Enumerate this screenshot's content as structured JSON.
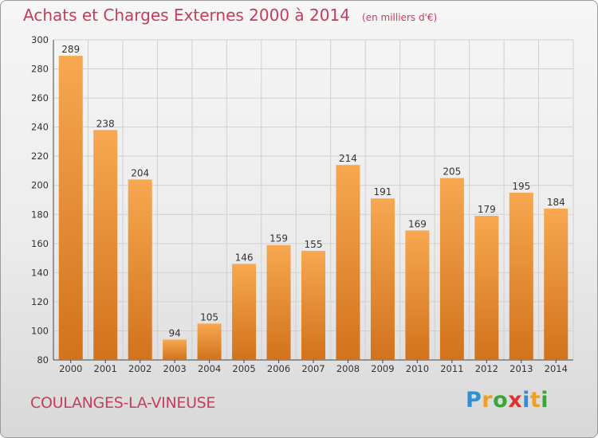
{
  "chart_data": {
    "type": "bar",
    "title": "Achats et Charges Externes 2000 à 2014",
    "unit": "(en milliers d'€)",
    "categories": [
      "2000",
      "2001",
      "2002",
      "2003",
      "2004",
      "2005",
      "2006",
      "2007",
      "2008",
      "2009",
      "2010",
      "2011",
      "2012",
      "2013",
      "2014"
    ],
    "values": [
      289,
      238,
      204,
      94,
      105,
      146,
      159,
      155,
      214,
      191,
      169,
      205,
      179,
      195,
      184
    ],
    "ylim": [
      80,
      300
    ],
    "yticks": [
      80,
      100,
      120,
      140,
      160,
      180,
      200,
      220,
      240,
      260,
      280,
      300
    ],
    "grid": true,
    "bar_color_top": "#f7a850",
    "bar_color_bottom": "#d2721c"
  },
  "footer": {
    "town": "COULANGES-LA-VINEUSE",
    "logo_letters": [
      "P",
      "r",
      "o",
      "x",
      "i",
      "t",
      "i"
    ],
    "logo_colors": [
      "#2e8fd4",
      "#f0a020",
      "#3aa53a",
      "#e03030",
      "#2e8fd4",
      "#f0a020",
      "#3aa53a"
    ]
  },
  "colors": {
    "title": "#c43e5a",
    "grid": "#d0d0d0"
  }
}
